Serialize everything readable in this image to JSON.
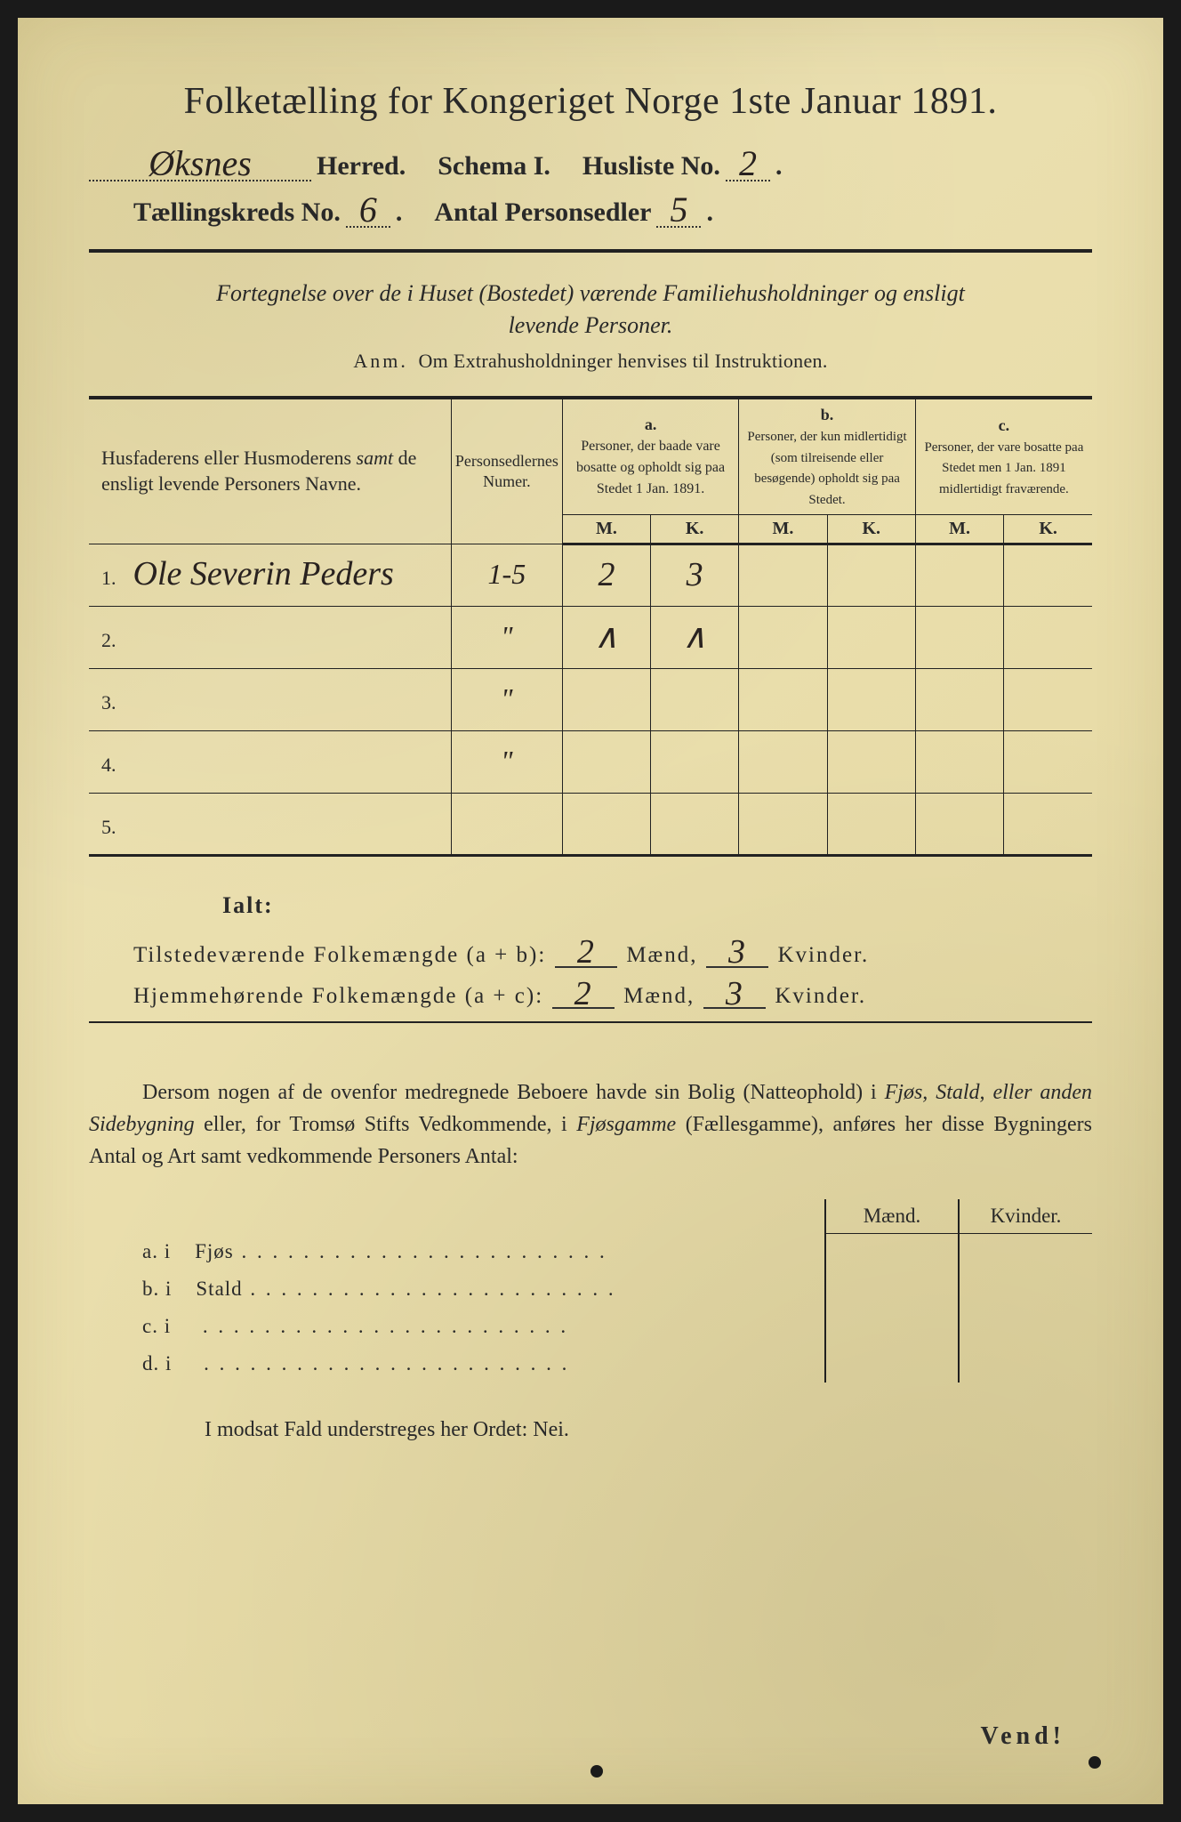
{
  "title": "Folketælling for Kongeriget Norge 1ste Januar 1891.",
  "header": {
    "parish_hw": "Øksnes",
    "herred": "Herred.",
    "schema": "Schema I.",
    "husliste_label": "Husliste No.",
    "husliste_no": "2",
    "kreds_label": "Tællingskreds No.",
    "kreds_no": "6",
    "antal_label": "Antal Personsedler",
    "antal_val": "5"
  },
  "subtitle_line1": "Fortegnelse over de i Huset (Bostedet) værende Familiehusholdninger og ensligt",
  "subtitle_line2": "levende Personer.",
  "anm_label": "Anm.",
  "anm_text": "Om Extrahusholdninger henvises til Instruktionen.",
  "table": {
    "col1": "Husfaderens eller Husmoderens samt de ensligt levende Personers Navne.",
    "col1_samt": "samt",
    "col2": "Personsedlernes Numer.",
    "a_label": "a.",
    "a_text": "Personer, der baade vare bosatte og opholdt sig paa Stedet 1 Jan. 1891.",
    "b_label": "b.",
    "b_text": "Personer, der kun midlertidigt (som tilreisende eller besøgende) opholdt sig paa Stedet.",
    "c_label": "c.",
    "c_text": "Personer, der vare bosatte paa Stedet men 1 Jan. 1891 midlertidigt fraværende.",
    "M": "M.",
    "K": "K.",
    "rows": [
      {
        "n": "1.",
        "name_hw": "Ole Severin Peders",
        "sedler": "1-5",
        "aM": "2",
        "aK": "3",
        "bM": "",
        "bK": "",
        "cM": "",
        "cK": ""
      },
      {
        "n": "2.",
        "name_hw": "",
        "sedler": "\"",
        "aM": "∧",
        "aK": "∧",
        "bM": "",
        "bK": "",
        "cM": "",
        "cK": ""
      },
      {
        "n": "3.",
        "name_hw": "",
        "sedler": "\"",
        "aM": "",
        "aK": "",
        "bM": "",
        "bK": "",
        "cM": "",
        "cK": ""
      },
      {
        "n": "4.",
        "name_hw": "",
        "sedler": "\"",
        "aM": "",
        "aK": "",
        "bM": "",
        "bK": "",
        "cM": "",
        "cK": ""
      },
      {
        "n": "5.",
        "name_hw": "",
        "sedler": "",
        "aM": "",
        "aK": "",
        "bM": "",
        "bK": "",
        "cM": "",
        "cK": ""
      }
    ]
  },
  "ialt": "Ialt:",
  "totals": {
    "line1_label": "Tilstedeværende Folkemængde (a + b):",
    "line1_m": "2",
    "line1_k": "3",
    "line2_label": "Hjemmehørende Folkemængde (a + c):",
    "line2_m": "2",
    "line2_k": "3",
    "maend": "Mænd,",
    "kvinder": "Kvinder."
  },
  "para": "Dersom nogen af de ovenfor medregnede Beboere havde sin Bolig (Natteophold) i Fjøs, Stald, eller anden Sidebygning eller, for Tromsø Stifts Vedkommende, i Fjøsgamme (Fællesgamme), anføres her disse Bygningers Antal og Art samt vedkommende Personers Antal:",
  "sidetable": {
    "maend": "Mænd.",
    "kvinder": "Kvinder.",
    "rows": [
      {
        "lbl": "a.  i",
        "type": "Fjøs"
      },
      {
        "lbl": "b.  i",
        "type": "Stald"
      },
      {
        "lbl": "c.  i",
        "type": ""
      },
      {
        "lbl": "d.  i",
        "type": ""
      }
    ]
  },
  "nei": "I modsat Fald understreges her Ordet: Nei.",
  "vend": "Vend!",
  "colors": {
    "paper": "#e8dca8",
    "ink": "#2a2a2a",
    "handwriting": "#2a2320"
  }
}
